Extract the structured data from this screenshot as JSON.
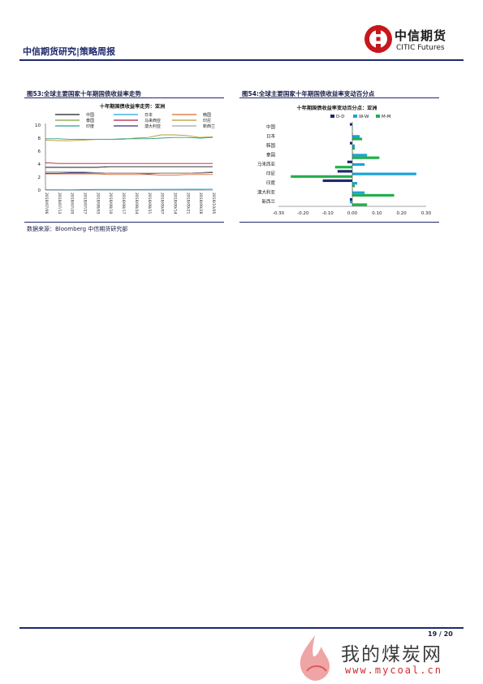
{
  "header": {
    "title": "中信期货研究|策略周报",
    "logo_cn": "中信期货",
    "logo_en": "CITIC Futures"
  },
  "figures": [
    {
      "title": "图53:全球主要国家十年期国债收益率走势"
    },
    {
      "title": "图54:全球主要国家十年期国债收益率变动百分点"
    }
  ],
  "source": "数据来源：Bloomberg  中信期货研究部",
  "page_number": "19 / 20",
  "watermark": {
    "cn": "我的煤炭网",
    "url": "www.mycoal.cn"
  },
  "colors": {
    "navy": "#1f2a6b",
    "teal": "#1aa3d9",
    "green": "#22b04b"
  },
  "chart_data": [
    {
      "type": "line",
      "title": "十年期国债收益率走势：亚洲",
      "x": [
        "2018/07/06",
        "2018/07/13",
        "2018/07/20",
        "2018/07/27",
        "2018/08/03",
        "2018/08/10",
        "2018/08/17",
        "2018/08/24",
        "2018/08/31",
        "2018/09/07",
        "2018/09/14",
        "2018/09/21",
        "2018/09/28",
        "2018/10/05"
      ],
      "ylim": [
        0,
        10
      ],
      "yticks": [
        0,
        2,
        4,
        6,
        8,
        10
      ],
      "legend": "top",
      "series": [
        {
          "name": "中国",
          "color": "#1a1a1a",
          "values": [
            3.5,
            3.5,
            3.5,
            3.5,
            3.5,
            3.6,
            3.6,
            3.6,
            3.6,
            3.6,
            3.6,
            3.6,
            3.6,
            3.6
          ]
        },
        {
          "name": "日本",
          "color": "#1aa3d9",
          "values": [
            0.04,
            0.04,
            0.03,
            0.06,
            0.1,
            0.1,
            0.1,
            0.09,
            0.1,
            0.11,
            0.11,
            0.12,
            0.13,
            0.15
          ]
        },
        {
          "name": "韩国",
          "color": "#d9692e",
          "values": [
            2.5,
            2.5,
            2.5,
            2.5,
            2.5,
            2.4,
            2.4,
            2.4,
            2.4,
            2.3,
            2.3,
            2.4,
            2.4,
            2.4
          ]
        },
        {
          "name": "泰国",
          "color": "#7f9f3f",
          "values": [
            2.6,
            2.6,
            2.6,
            2.6,
            2.6,
            2.6,
            2.6,
            2.6,
            2.6,
            2.6,
            2.6,
            2.6,
            2.6,
            2.7
          ]
        },
        {
          "name": "马来西亚",
          "color": "#b0203a",
          "values": [
            4.2,
            4.1,
            4.1,
            4.1,
            4.1,
            4.1,
            4.1,
            4.1,
            4.1,
            4.1,
            4.1,
            4.1,
            4.1,
            4.1
          ]
        },
        {
          "name": "印尼",
          "color": "#b59a2b",
          "values": [
            7.7,
            7.6,
            7.6,
            7.7,
            7.8,
            7.8,
            7.8,
            8.0,
            8.1,
            8.5,
            8.5,
            8.4,
            8.1,
            8.2
          ]
        },
        {
          "name": "印度",
          "color": "#2fa08a",
          "values": [
            7.9,
            7.9,
            7.8,
            7.8,
            7.8,
            7.8,
            7.9,
            7.9,
            7.9,
            8.0,
            8.1,
            8.1,
            8.0,
            8.1
          ]
        },
        {
          "name": "澳大利亚",
          "color": "#3a2f7a",
          "values": [
            2.6,
            2.6,
            2.7,
            2.7,
            2.7,
            2.6,
            2.6,
            2.6,
            2.5,
            2.6,
            2.6,
            2.6,
            2.7,
            2.7
          ]
        },
        {
          "name": "新西兰",
          "color": "#a3a3a3",
          "values": [
            2.8,
            2.8,
            2.8,
            2.8,
            2.7,
            2.6,
            2.6,
            2.6,
            2.6,
            2.6,
            2.6,
            2.6,
            2.7,
            2.8
          ]
        }
      ]
    },
    {
      "type": "bar",
      "orientation": "horizontal",
      "title": "十年期国债收益率变动百分点：亚洲",
      "categories": [
        "中国",
        "日本",
        "韩国",
        "泰国",
        "马来西亚",
        "印尼",
        "印度",
        "澳大利亚",
        "新西兰"
      ],
      "xlim": [
        -0.3,
        0.3
      ],
      "xticks": [
        "-0.30",
        "-0.20",
        "-0.10",
        "0.00",
        "0.10",
        "0.20",
        "0.30"
      ],
      "legend": "top",
      "series": [
        {
          "name": "D-D",
          "color": "#1f2a6b",
          "values": [
            -0.01,
            0.0,
            -0.01,
            0.0,
            -0.02,
            -0.06,
            -0.12,
            0.0,
            -0.01
          ]
        },
        {
          "name": "W-W",
          "color": "#1aa3d9",
          "values": [
            0.0,
            0.03,
            0.01,
            0.06,
            0.05,
            0.26,
            0.02,
            0.05,
            -0.01
          ]
        },
        {
          "name": "M-M",
          "color": "#22b04b",
          "values": [
            0.0,
            0.04,
            0.01,
            0.11,
            -0.07,
            -0.25,
            0.01,
            0.17,
            0.06
          ]
        }
      ]
    }
  ]
}
